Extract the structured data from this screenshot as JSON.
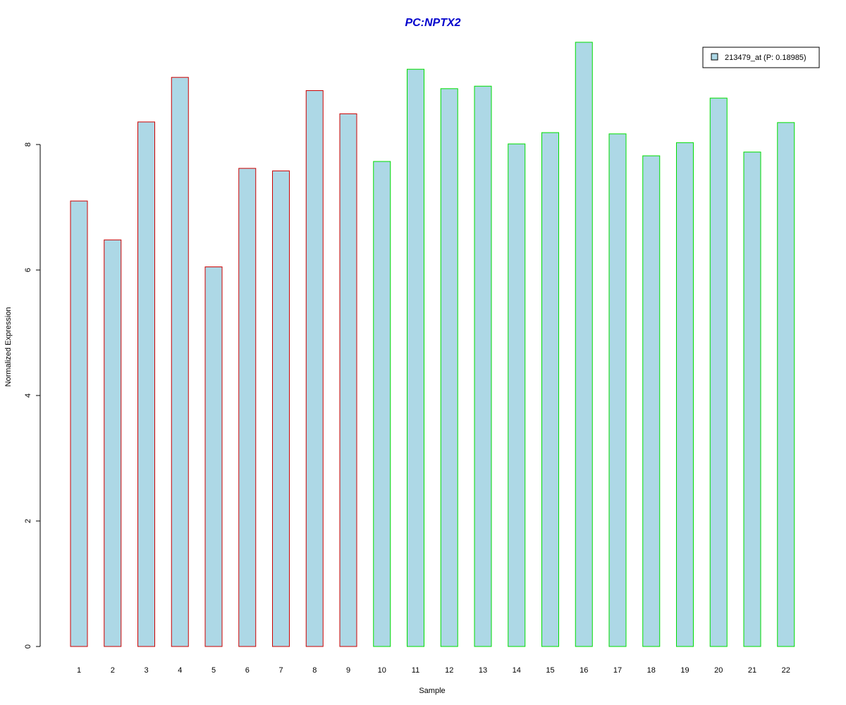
{
  "colors": {
    "title": "#0000cc",
    "bar_fill": "#add8e6",
    "group_a_border": "#cc0000",
    "group_b_border": "#00dd00",
    "axis": "#000000"
  },
  "chart_data": {
    "type": "bar",
    "title": "PC:NPTX2",
    "xlabel": "Sample",
    "ylabel": "Normalized Expression",
    "ylim": [
      0,
      9.7
    ],
    "yticks": [
      0,
      2,
      4,
      6,
      8
    ],
    "grid": false,
    "legend_position": "top-right",
    "categories": [
      "1",
      "2",
      "3",
      "4",
      "5",
      "6",
      "7",
      "8",
      "9",
      "10",
      "11",
      "12",
      "13",
      "14",
      "15",
      "16",
      "17",
      "18",
      "19",
      "20",
      "21",
      "22"
    ],
    "series": [
      {
        "name": "213479_at (P: 0.18985)",
        "values": [
          7.1,
          6.48,
          8.36,
          9.07,
          6.05,
          7.62,
          7.58,
          8.86,
          8.49,
          7.73,
          9.2,
          8.89,
          8.93,
          8.01,
          8.19,
          9.63,
          8.17,
          7.82,
          8.03,
          8.74,
          7.88,
          8.35
        ]
      }
    ],
    "groups": [
      "a",
      "a",
      "a",
      "a",
      "a",
      "a",
      "a",
      "a",
      "a",
      "b",
      "b",
      "b",
      "b",
      "b",
      "b",
      "b",
      "b",
      "b",
      "b",
      "b",
      "b",
      "b"
    ]
  }
}
